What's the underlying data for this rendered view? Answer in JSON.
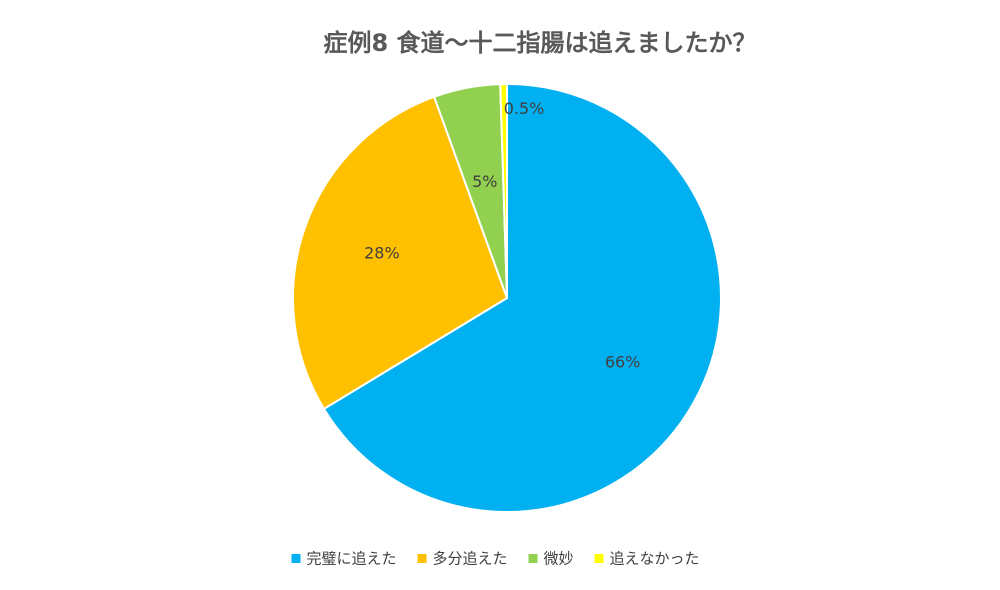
{
  "chart_data": {
    "type": "pie",
    "title": "症例8  食道〜十二指腸は追えましたか？",
    "categories": [
      "完璧に追えた",
      "多分追えた",
      "微妙",
      "追えなかった"
    ],
    "values": [
      66,
      28,
      5,
      0.5
    ],
    "value_labels": [
      "66%",
      "28%",
      "5%",
      "0.5%"
    ],
    "colors": [
      "#00b0f0",
      "#ffc000",
      "#92d050",
      "#ffff00"
    ],
    "legend": "bottom"
  }
}
